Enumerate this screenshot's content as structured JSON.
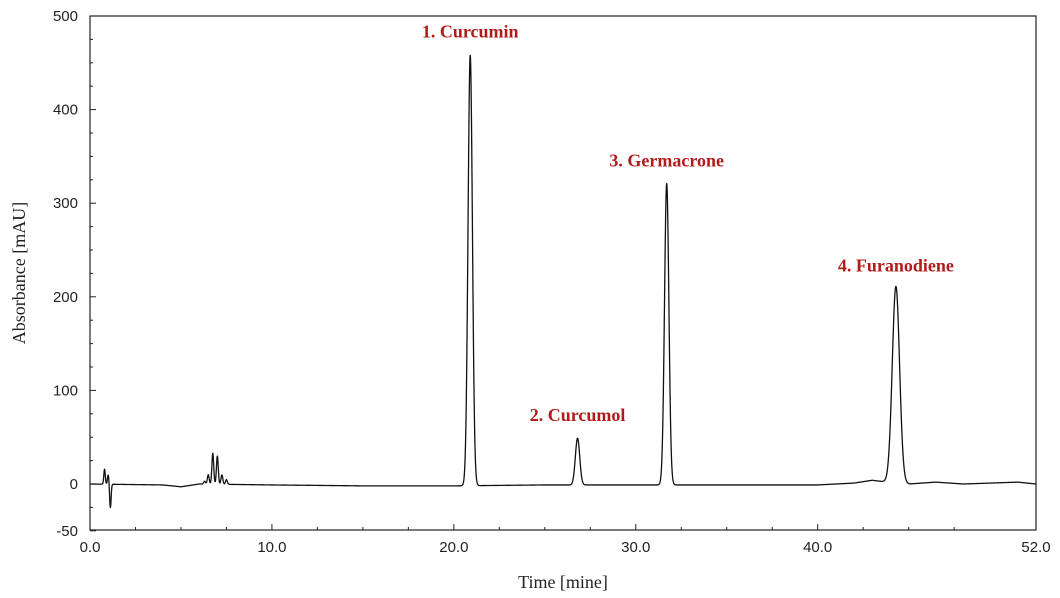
{
  "chart_data": {
    "type": "line",
    "xlabel": "Time [mine]",
    "ylabel": "Absorbance [mAU]",
    "xlim": [
      0,
      52
    ],
    "ylim": [
      -50,
      500
    ],
    "grid": false,
    "x_ticks": [
      {
        "value": 0,
        "label": "0.0"
      },
      {
        "value": 10,
        "label": "10.0"
      },
      {
        "value": 20,
        "label": "20.0"
      },
      {
        "value": 30,
        "label": "30.0"
      },
      {
        "value": 40,
        "label": "40.0"
      },
      {
        "value": 52,
        "label": "52.0"
      }
    ],
    "y_ticks": [
      {
        "value": -50,
        "label": "-50"
      },
      {
        "value": 0,
        "label": "0"
      },
      {
        "value": 100,
        "label": "100"
      },
      {
        "value": 200,
        "label": "200"
      },
      {
        "value": 300,
        "label": "300"
      },
      {
        "value": 400,
        "label": "400"
      },
      {
        "value": 500,
        "label": "500"
      }
    ],
    "baseline": [
      [
        0.0,
        0
      ],
      [
        4.0,
        -1
      ],
      [
        5.0,
        -3
      ],
      [
        6.0,
        0
      ],
      [
        10.0,
        -1
      ],
      [
        15.0,
        -2
      ],
      [
        20.0,
        -2
      ],
      [
        25.0,
        -1
      ],
      [
        30.0,
        -1
      ],
      [
        35.0,
        -1
      ],
      [
        40.0,
        -1
      ],
      [
        42.0,
        1
      ],
      [
        43.0,
        4
      ],
      [
        43.8,
        2
      ],
      [
        45.0,
        0
      ],
      [
        46.5,
        2
      ],
      [
        48.0,
        0
      ],
      [
        51.0,
        2
      ],
      [
        52.0,
        0
      ]
    ],
    "peaks": [
      {
        "label": "1. Curcumin",
        "rt": 20.9,
        "height": 460,
        "width": 0.12,
        "labeled": true
      },
      {
        "label": "2. Curcumol",
        "rt": 26.8,
        "height": 50,
        "width": 0.12,
        "labeled": true
      },
      {
        "label": "3. Germacrone",
        "rt": 31.7,
        "height": 322,
        "width": 0.12,
        "labeled": true
      },
      {
        "label": "4. Furanodiene",
        "rt": 44.3,
        "height": 210,
        "width": 0.2,
        "labeled": true
      },
      {
        "rt": 0.8,
        "height": 16,
        "width": 0.04
      },
      {
        "rt": 1.0,
        "height": 10,
        "width": 0.04
      },
      {
        "rt": 1.12,
        "height": -25,
        "width": 0.04
      },
      {
        "rt": 6.3,
        "height": 3,
        "width": 0.05
      },
      {
        "rt": 6.5,
        "height": 10,
        "width": 0.05
      },
      {
        "rt": 6.75,
        "height": 33,
        "width": 0.05
      },
      {
        "rt": 7.0,
        "height": 30,
        "width": 0.05
      },
      {
        "rt": 7.25,
        "height": 10,
        "width": 0.05
      },
      {
        "rt": 7.5,
        "height": 5,
        "width": 0.05
      }
    ],
    "label_color": "#b01c1c",
    "line_color": "#111111"
  }
}
